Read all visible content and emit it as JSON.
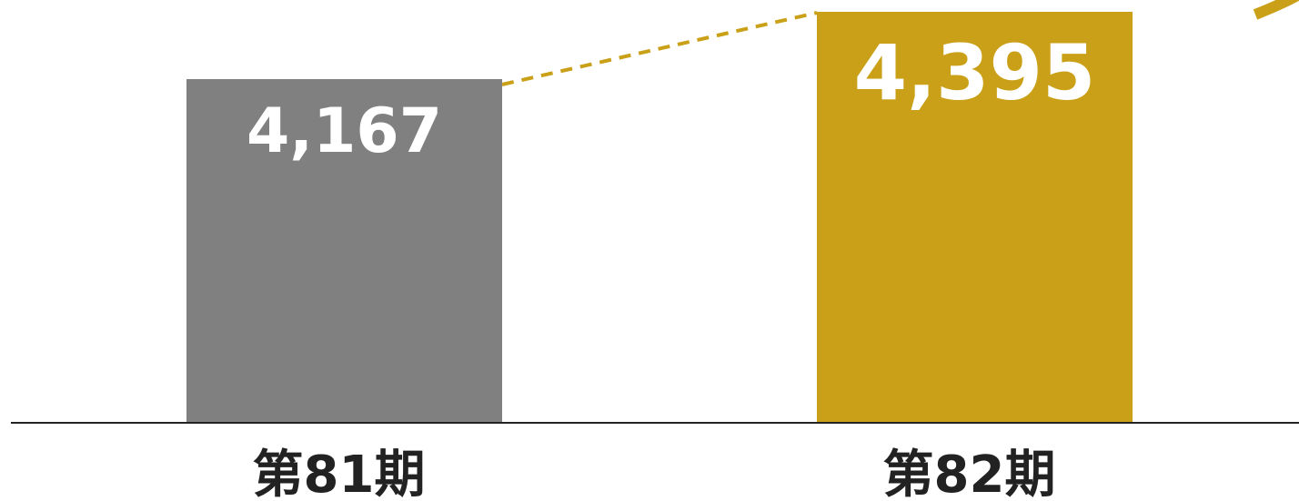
{
  "chart_data": {
    "type": "bar",
    "categories": [
      "第81期",
      "第82期"
    ],
    "values": [
      4167,
      4395
    ],
    "value_labels": [
      "4,167",
      "4,395"
    ],
    "colors": [
      "#808080",
      "#c9a017"
    ],
    "accent_color": "#c9a017",
    "axis_color": "#222222",
    "title": "",
    "xlabel": "",
    "ylabel": "",
    "grid": false,
    "legend": "none"
  }
}
